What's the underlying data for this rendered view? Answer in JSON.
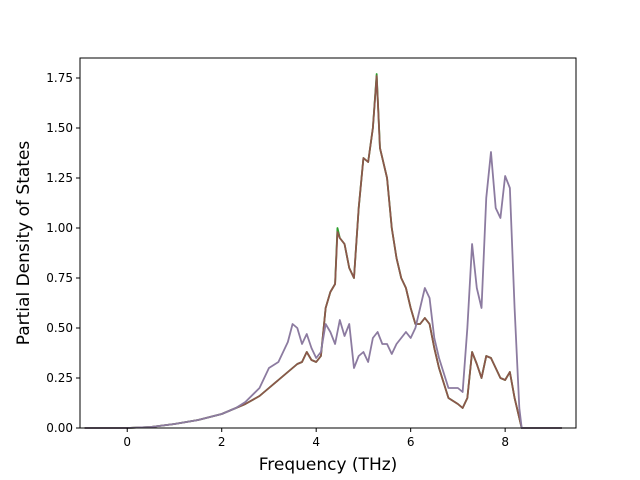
{
  "chart_data": {
    "type": "line",
    "title": "",
    "xlabel": "Frequency (THz)",
    "ylabel": "Partial Density of States",
    "xlim": [
      -1.0,
      9.5
    ],
    "ylim": [
      0.0,
      1.85
    ],
    "grid": false,
    "xticks": [
      {
        "v": 0,
        "label": "0"
      },
      {
        "v": 2,
        "label": "2"
      },
      {
        "v": 4,
        "label": "4"
      },
      {
        "v": 6,
        "label": "6"
      },
      {
        "v": 8,
        "label": "8"
      }
    ],
    "yticks": [
      {
        "v": 0.0,
        "label": "0.00"
      },
      {
        "v": 0.25,
        "label": "0.25"
      },
      {
        "v": 0.5,
        "label": "0.50"
      },
      {
        "v": 0.75,
        "label": "0.75"
      },
      {
        "v": 1.0,
        "label": "1.00"
      },
      {
        "v": 1.25,
        "label": "1.25"
      },
      {
        "v": 1.5,
        "label": "1.50"
      },
      {
        "v": 1.75,
        "label": "1.75"
      }
    ],
    "series": [
      {
        "color": "#2ca02c",
        "points": [
          [
            -0.9,
            0
          ],
          [
            0,
            0
          ],
          [
            0.5,
            0.005
          ],
          [
            1,
            0.02
          ],
          [
            1.5,
            0.04
          ],
          [
            2,
            0.07
          ],
          [
            2.3,
            0.1
          ],
          [
            2.5,
            0.12
          ],
          [
            2.8,
            0.16
          ],
          [
            3.0,
            0.2
          ],
          [
            3.2,
            0.24
          ],
          [
            3.4,
            0.28
          ],
          [
            3.5,
            0.3
          ],
          [
            3.6,
            0.32
          ],
          [
            3.7,
            0.33
          ],
          [
            3.8,
            0.38
          ],
          [
            3.9,
            0.34
          ],
          [
            4.0,
            0.33
          ],
          [
            4.1,
            0.36
          ],
          [
            4.2,
            0.6
          ],
          [
            4.3,
            0.68
          ],
          [
            4.4,
            0.72
          ],
          [
            4.45,
            1.0
          ],
          [
            4.5,
            0.95
          ],
          [
            4.6,
            0.92
          ],
          [
            4.7,
            0.8
          ],
          [
            4.8,
            0.75
          ],
          [
            4.9,
            1.1
          ],
          [
            5.0,
            1.35
          ],
          [
            5.1,
            1.33
          ],
          [
            5.2,
            1.5
          ],
          [
            5.28,
            1.77
          ],
          [
            5.35,
            1.4
          ],
          [
            5.45,
            1.3
          ],
          [
            5.5,
            1.25
          ],
          [
            5.6,
            1.0
          ],
          [
            5.7,
            0.85
          ],
          [
            5.8,
            0.75
          ],
          [
            5.9,
            0.7
          ],
          [
            6.0,
            0.6
          ],
          [
            6.1,
            0.52
          ],
          [
            6.2,
            0.52
          ],
          [
            6.3,
            0.55
          ],
          [
            6.4,
            0.52
          ],
          [
            6.5,
            0.4
          ],
          [
            6.6,
            0.3
          ],
          [
            6.8,
            0.15
          ],
          [
            7.0,
            0.12
          ],
          [
            7.1,
            0.1
          ],
          [
            7.2,
            0.15
          ],
          [
            7.3,
            0.38
          ],
          [
            7.4,
            0.32
          ],
          [
            7.5,
            0.25
          ],
          [
            7.6,
            0.36
          ],
          [
            7.7,
            0.35
          ],
          [
            7.8,
            0.3
          ],
          [
            7.9,
            0.25
          ],
          [
            8.0,
            0.24
          ],
          [
            8.1,
            0.28
          ],
          [
            8.2,
            0.15
          ],
          [
            8.3,
            0.05
          ],
          [
            8.35,
            0
          ],
          [
            9.2,
            0
          ]
        ]
      },
      {
        "color": "#8c564b",
        "points": [
          [
            -0.9,
            0
          ],
          [
            0,
            0
          ],
          [
            0.5,
            0.005
          ],
          [
            1,
            0.02
          ],
          [
            1.5,
            0.04
          ],
          [
            2,
            0.07
          ],
          [
            2.3,
            0.1
          ],
          [
            2.5,
            0.12
          ],
          [
            2.8,
            0.16
          ],
          [
            3.0,
            0.2
          ],
          [
            3.2,
            0.24
          ],
          [
            3.4,
            0.28
          ],
          [
            3.5,
            0.3
          ],
          [
            3.6,
            0.32
          ],
          [
            3.7,
            0.33
          ],
          [
            3.8,
            0.38
          ],
          [
            3.9,
            0.34
          ],
          [
            4.0,
            0.33
          ],
          [
            4.1,
            0.36
          ],
          [
            4.2,
            0.6
          ],
          [
            4.3,
            0.68
          ],
          [
            4.4,
            0.72
          ],
          [
            4.45,
            0.98
          ],
          [
            4.5,
            0.95
          ],
          [
            4.6,
            0.92
          ],
          [
            4.7,
            0.8
          ],
          [
            4.8,
            0.75
          ],
          [
            4.9,
            1.1
          ],
          [
            5.0,
            1.35
          ],
          [
            5.1,
            1.33
          ],
          [
            5.2,
            1.5
          ],
          [
            5.28,
            1.76
          ],
          [
            5.35,
            1.4
          ],
          [
            5.45,
            1.3
          ],
          [
            5.5,
            1.25
          ],
          [
            5.6,
            1.0
          ],
          [
            5.7,
            0.85
          ],
          [
            5.8,
            0.75
          ],
          [
            5.9,
            0.7
          ],
          [
            6.0,
            0.6
          ],
          [
            6.1,
            0.52
          ],
          [
            6.2,
            0.52
          ],
          [
            6.3,
            0.55
          ],
          [
            6.4,
            0.52
          ],
          [
            6.5,
            0.4
          ],
          [
            6.6,
            0.3
          ],
          [
            6.8,
            0.15
          ],
          [
            7.0,
            0.12
          ],
          [
            7.1,
            0.1
          ],
          [
            7.2,
            0.15
          ],
          [
            7.3,
            0.38
          ],
          [
            7.4,
            0.32
          ],
          [
            7.5,
            0.25
          ],
          [
            7.6,
            0.36
          ],
          [
            7.7,
            0.35
          ],
          [
            7.8,
            0.3
          ],
          [
            7.9,
            0.25
          ],
          [
            8.0,
            0.24
          ],
          [
            8.1,
            0.28
          ],
          [
            8.2,
            0.15
          ],
          [
            8.3,
            0.05
          ],
          [
            8.35,
            0
          ],
          [
            9.2,
            0
          ]
        ]
      },
      {
        "color": "#8c7ba0",
        "points": [
          [
            -0.9,
            0
          ],
          [
            0,
            0
          ],
          [
            0.5,
            0.005
          ],
          [
            1,
            0.02
          ],
          [
            1.5,
            0.04
          ],
          [
            2,
            0.07
          ],
          [
            2.3,
            0.1
          ],
          [
            2.5,
            0.13
          ],
          [
            2.8,
            0.2
          ],
          [
            3.0,
            0.3
          ],
          [
            3.2,
            0.33
          ],
          [
            3.4,
            0.43
          ],
          [
            3.5,
            0.52
          ],
          [
            3.6,
            0.5
          ],
          [
            3.7,
            0.42
          ],
          [
            3.8,
            0.47
          ],
          [
            3.9,
            0.4
          ],
          [
            4.0,
            0.35
          ],
          [
            4.1,
            0.38
          ],
          [
            4.2,
            0.52
          ],
          [
            4.3,
            0.48
          ],
          [
            4.4,
            0.42
          ],
          [
            4.5,
            0.54
          ],
          [
            4.6,
            0.46
          ],
          [
            4.7,
            0.52
          ],
          [
            4.8,
            0.3
          ],
          [
            4.9,
            0.36
          ],
          [
            5.0,
            0.38
          ],
          [
            5.1,
            0.33
          ],
          [
            5.2,
            0.45
          ],
          [
            5.3,
            0.48
          ],
          [
            5.4,
            0.42
          ],
          [
            5.5,
            0.42
          ],
          [
            5.6,
            0.37
          ],
          [
            5.7,
            0.42
          ],
          [
            5.8,
            0.45
          ],
          [
            5.9,
            0.48
          ],
          [
            6.0,
            0.45
          ],
          [
            6.1,
            0.5
          ],
          [
            6.2,
            0.6
          ],
          [
            6.3,
            0.7
          ],
          [
            6.4,
            0.65
          ],
          [
            6.5,
            0.45
          ],
          [
            6.6,
            0.35
          ],
          [
            6.8,
            0.2
          ],
          [
            7.0,
            0.2
          ],
          [
            7.1,
            0.18
          ],
          [
            7.2,
            0.5
          ],
          [
            7.3,
            0.92
          ],
          [
            7.4,
            0.7
          ],
          [
            7.5,
            0.6
          ],
          [
            7.6,
            1.15
          ],
          [
            7.7,
            1.38
          ],
          [
            7.8,
            1.1
          ],
          [
            7.9,
            1.05
          ],
          [
            8.0,
            1.26
          ],
          [
            8.1,
            1.2
          ],
          [
            8.2,
            0.6
          ],
          [
            8.3,
            0.1
          ],
          [
            8.35,
            0
          ],
          [
            9.2,
            0
          ]
        ]
      }
    ]
  }
}
